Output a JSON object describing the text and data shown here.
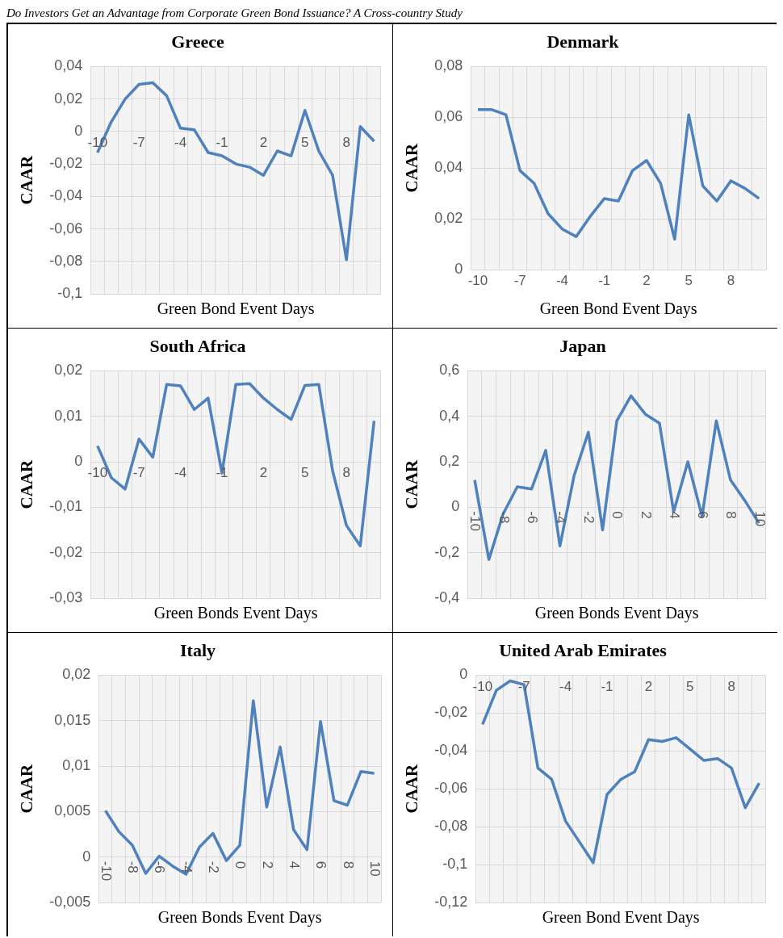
{
  "chart_data": [
    {
      "type": "line",
      "title": "Greece",
      "xlabel": "Green Bond Event Days",
      "ylabel": "CAAR",
      "annotations": [
        "Do Investors Get an Advantage from Corporate Green Bond Issuance? A Cross-country Study"
      ],
      "categories": [
        "-10",
        null,
        null,
        "-7",
        null,
        null,
        "-4",
        null,
        null,
        "-1",
        null,
        null,
        "2",
        null,
        null,
        "5",
        null,
        null,
        "8",
        null,
        null
      ],
      "color": "#4f81bd",
      "values": [
        -0.013,
        0.006,
        0.02,
        0.029,
        0.03,
        0.022,
        0.002,
        0.001,
        -0.013,
        -0.015,
        -0.02,
        -0.022,
        -0.027,
        -0.012,
        -0.015,
        0.013,
        -0.012,
        -0.027,
        -0.079,
        0.003,
        -0.006
      ],
      "ylim": [
        -0.1,
        0.04
      ],
      "yticks": [
        {
          "value": -0.1,
          "label": "-0,1"
        },
        {
          "value": -0.08,
          "label": "-0,08"
        },
        {
          "value": -0.06,
          "label": "-0,06"
        },
        {
          "value": -0.04,
          "label": "-0,04"
        },
        {
          "value": -0.02,
          "label": "-0,02"
        },
        {
          "value": 0,
          "label": "0"
        },
        {
          "value": 0.02,
          "label": "0,02"
        },
        {
          "value": 0.04,
          "label": "0,04"
        }
      ],
      "grid": true
    },
    {
      "type": "line",
      "title": "Denmark",
      "xlabel": "Green Bond Event Days",
      "ylabel": "CAAR",
      "categories": [
        "-10",
        null,
        null,
        "-7",
        null,
        null,
        "-4",
        null,
        null,
        "-1",
        null,
        null,
        "2",
        null,
        null,
        "5",
        null,
        null,
        "8",
        null,
        null
      ],
      "color": "#4f81bd",
      "values": [
        0.063,
        0.063,
        0.061,
        0.039,
        0.034,
        0.022,
        0.016,
        0.013,
        0.021,
        0.028,
        0.027,
        0.039,
        0.043,
        0.034,
        0.012,
        0.061,
        0.033,
        0.027,
        0.035,
        0.032,
        0.028
      ],
      "ylim": [
        0,
        0.08
      ],
      "yticks": [
        {
          "value": 0,
          "label": "0"
        },
        {
          "value": 0.02,
          "label": "0,02"
        },
        {
          "value": 0.04,
          "label": "0,04"
        },
        {
          "value": 0.06,
          "label": "0,06"
        },
        {
          "value": 0.08,
          "label": "0,08"
        }
      ],
      "grid": true
    },
    {
      "type": "line",
      "title": "South Africa",
      "xlabel": "Green Bonds Event Days",
      "ylabel": "CAAR",
      "categories": [
        "-10",
        null,
        null,
        "-7",
        null,
        null,
        "-4",
        null,
        null,
        "-1",
        null,
        null,
        "2",
        null,
        null,
        "5",
        null,
        null,
        "8",
        null,
        null
      ],
      "color": "#4f81bd",
      "values": [
        0.0035,
        -0.0035,
        -0.006,
        0.005,
        0.001,
        0.017,
        0.0167,
        0.0115,
        0.014,
        -0.0025,
        0.017,
        0.0172,
        0.014,
        0.0115,
        0.0093,
        0.0168,
        0.017,
        -0.002,
        -0.014,
        -0.0185,
        0.009
      ],
      "ylim": [
        -0.03,
        0.02
      ],
      "yticks": [
        {
          "value": -0.03,
          "label": "-0,03"
        },
        {
          "value": -0.02,
          "label": "-0,02"
        },
        {
          "value": -0.01,
          "label": "-0,01"
        },
        {
          "value": 0,
          "label": "0"
        },
        {
          "value": 0.01,
          "label": "0,01"
        },
        {
          "value": 0.02,
          "label": "0,02"
        }
      ],
      "grid": true
    },
    {
      "type": "line",
      "title": "Japan",
      "xlabel": "Green Bonds Event Days",
      "ylabel": "CAAR",
      "categories": [
        "-10",
        null,
        "-8",
        null,
        "-6",
        null,
        "-4",
        null,
        "-2",
        null,
        "0",
        null,
        "2",
        null,
        "4",
        null,
        "6",
        null,
        "8",
        null,
        "10"
      ],
      "color": "#4f81bd",
      "values": [
        0.12,
        -0.23,
        -0.03,
        0.09,
        0.08,
        0.25,
        -0.17,
        0.14,
        0.33,
        -0.1,
        0.38,
        0.49,
        0.41,
        0.37,
        -0.02,
        0.2,
        -0.04,
        0.38,
        0.12,
        0.03,
        -0.07
      ],
      "ylim": [
        -0.4,
        0.6
      ],
      "yticks": [
        {
          "value": -0.4,
          "label": "-0,4"
        },
        {
          "value": -0.2,
          "label": "-0,2"
        },
        {
          "value": 0,
          "label": "0"
        },
        {
          "value": 0.2,
          "label": "0,2"
        },
        {
          "value": 0.4,
          "label": "0,4"
        },
        {
          "value": 0.6,
          "label": "0,6"
        }
      ],
      "grid": true
    },
    {
      "type": "line",
      "title": "Italy",
      "xlabel": "Green Bonds Event Days",
      "ylabel": "CAAR",
      "categories": [
        "-10",
        null,
        "-8",
        null,
        "-6",
        null,
        "-4",
        null,
        "-2",
        null,
        "0",
        null,
        "2",
        null,
        "4",
        null,
        "6",
        null,
        "8",
        null,
        "10"
      ],
      "color": "#4f81bd",
      "values": [
        0.0051,
        0.0028,
        0.0013,
        -0.0018,
        0.0001,
        -0.001,
        -0.0019,
        0.0011,
        0.0026,
        -0.0004,
        0.0013,
        0.0172,
        0.0055,
        0.0121,
        0.003,
        0.0008,
        0.0149,
        0.0062,
        0.0057,
        0.0094,
        0.0092
      ],
      "ylim": [
        -0.005,
        0.02
      ],
      "yticks": [
        {
          "value": -0.005,
          "label": "-0,005"
        },
        {
          "value": 0,
          "label": "0"
        },
        {
          "value": 0.005,
          "label": "0,005"
        },
        {
          "value": 0.01,
          "label": "0,01"
        },
        {
          "value": 0.015,
          "label": "0,015"
        },
        {
          "value": 0.02,
          "label": "0,02"
        }
      ],
      "grid": true
    },
    {
      "type": "line",
      "title": "United Arab Emirates",
      "xlabel": "Green Bond Event Days",
      "ylabel": "CAAR",
      "categories": [
        "-10",
        null,
        null,
        "-7",
        null,
        null,
        "-4",
        null,
        null,
        "-1",
        null,
        null,
        "2",
        null,
        null,
        "5",
        null,
        null,
        "8",
        null,
        null
      ],
      "color": "#4f81bd",
      "values": [
        -0.026,
        -0.008,
        -0.003,
        -0.005,
        -0.049,
        -0.055,
        -0.077,
        -0.088,
        -0.099,
        -0.063,
        -0.055,
        -0.051,
        -0.034,
        -0.035,
        -0.033,
        -0.039,
        -0.045,
        -0.044,
        -0.049,
        -0.07,
        -0.057
      ],
      "ylim": [
        -0.12,
        0
      ],
      "yticks": [
        {
          "value": -0.12,
          "label": "-0,12"
        },
        {
          "value": -0.1,
          "label": "-0,1"
        },
        {
          "value": -0.08,
          "label": "-0,08"
        },
        {
          "value": -0.06,
          "label": "-0,06"
        },
        {
          "value": -0.04,
          "label": "-0,04"
        },
        {
          "value": -0.02,
          "label": "-0,02"
        },
        {
          "value": 0,
          "label": "0"
        }
      ],
      "grid": true
    }
  ]
}
